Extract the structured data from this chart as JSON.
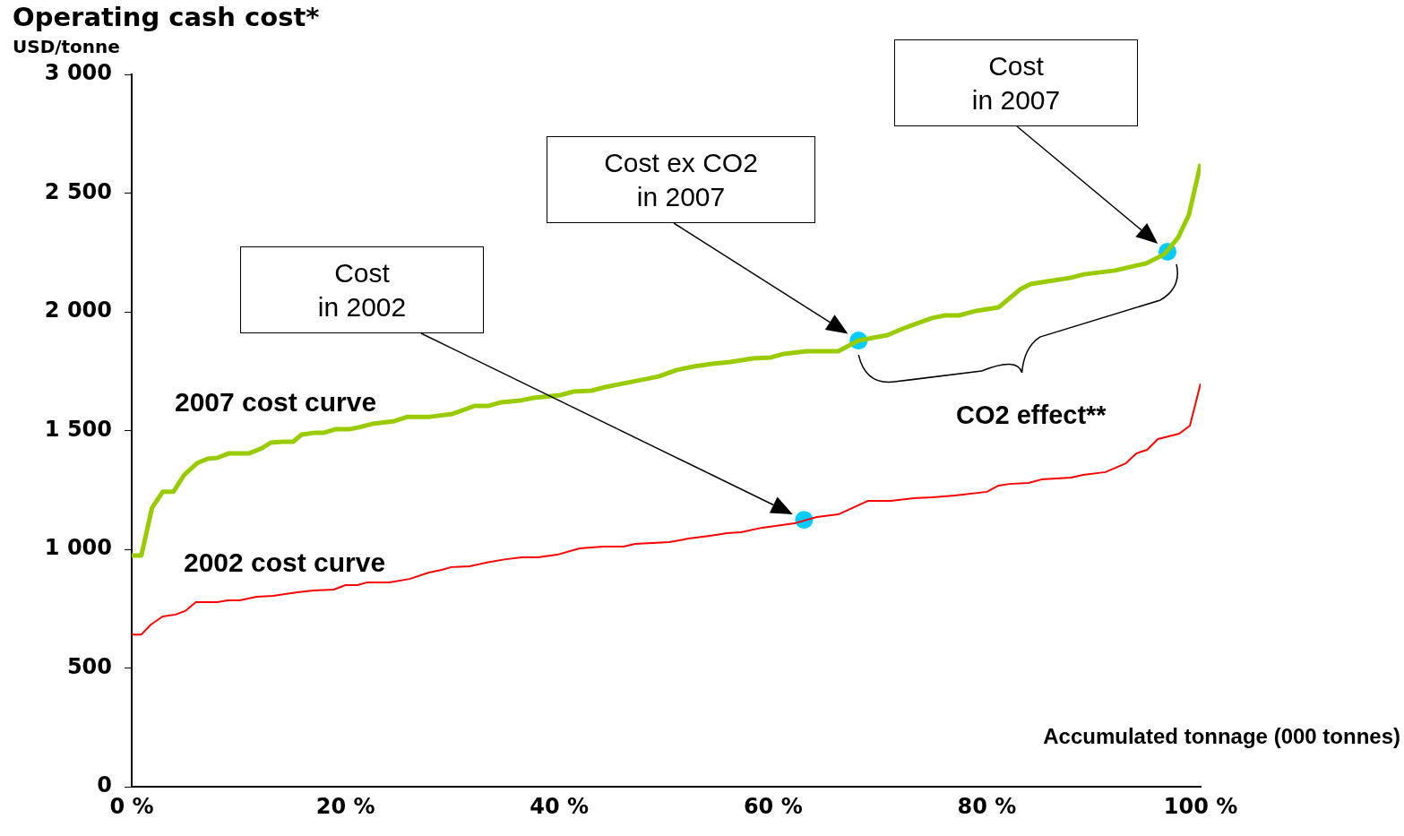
{
  "chart_data": {
    "type": "line",
    "title": "Operating cash cost*",
    "ylabel": "USD/tonne",
    "xlabel": "Accumulated tonnage (000 tonnes)",
    "xlim": [
      0,
      100
    ],
    "xticks": [
      {
        "value": 0,
        "label": "0 %"
      },
      {
        "value": 20,
        "label": "20 %"
      },
      {
        "value": 40,
        "label": "40 %"
      },
      {
        "value": 60,
        "label": "60 %"
      },
      {
        "value": 80,
        "label": "80 %"
      },
      {
        "value": 100,
        "label": "100 %"
      }
    ],
    "ylim": [
      0,
      3000
    ],
    "yticks": [
      0,
      500,
      {
        "value": 1000,
        "label": "1 000"
      },
      {
        "value": 1500,
        "label": "1 500"
      },
      {
        "value": 2000,
        "label": "2 000"
      },
      {
        "value": 2500,
        "label": "2 500"
      },
      {
        "value": 3000,
        "label": "3 000"
      }
    ],
    "grid": false,
    "legend": false,
    "series": [
      {
        "name": "2007 cost curve",
        "color": "#99cc00",
        "x": [
          0,
          0.9,
          1.9,
          2.9,
          3.9,
          4.9,
          6.1,
          7.1,
          8.0,
          9.1,
          11,
          12.2,
          13,
          14.1,
          15.1,
          15.9,
          17.2,
          18,
          19.1,
          20.4,
          21.2,
          22.5,
          24.6,
          25.8,
          27.9,
          30,
          32.1,
          33.4,
          34.6,
          36.3,
          37.6,
          40.1,
          41.3,
          43,
          44.3,
          47.2,
          49.3,
          51,
          52.6,
          54.3,
          56,
          58.1,
          59.8,
          61,
          63.1,
          66.1,
          68,
          70.7,
          72.3,
          74.9,
          76.1,
          77.4,
          79,
          81.1,
          83.1,
          84.1,
          86.2,
          87.8,
          89.1,
          92,
          93.7,
          94.9,
          96.6,
          97.9,
          98.9,
          100
        ],
        "values": [
          974,
          974,
          1174,
          1242,
          1242,
          1313,
          1362,
          1381,
          1385,
          1404,
          1404,
          1426,
          1449,
          1453,
          1453,
          1483,
          1491,
          1491,
          1506,
          1506,
          1513,
          1528,
          1540,
          1558,
          1558,
          1570,
          1604,
          1604,
          1619,
          1626,
          1638,
          1649,
          1664,
          1668,
          1683,
          1709,
          1728,
          1755,
          1770,
          1781,
          1789,
          1804,
          1808,
          1823,
          1834,
          1834,
          1879,
          1902,
          1932,
          1974,
          1985,
          1985,
          2004,
          2019,
          2094,
          2117,
          2132,
          2143,
          2158,
          2174,
          2192,
          2204,
          2242,
          2313,
          2408,
          2623
        ]
      },
      {
        "name": "2002 cost curve",
        "color": "#ff0000",
        "x": [
          0,
          0.9,
          1.8,
          2.9,
          4.1,
          5.0,
          6.0,
          8.0,
          9.0,
          10.1,
          11.7,
          13.2,
          15.5,
          17.0,
          18.9,
          20.0,
          21.1,
          22.0,
          24.1,
          26.0,
          27.8,
          29.0,
          29.9,
          31.6,
          33.1,
          35.0,
          36.5,
          38.0,
          39.8,
          41.9,
          44.1,
          46.0,
          47.1,
          50.3,
          52.1,
          54.1,
          55.7,
          57.0,
          59.0,
          62.0,
          64.1,
          66.1,
          68.9,
          71.0,
          73.1,
          74.9,
          77.0,
          80.0,
          81.1,
          82.1,
          83.9,
          85.1,
          87.9,
          89.0,
          91.1,
          93.0,
          94.0,
          95.0,
          96.0,
          98.0,
          99.0,
          100
        ],
        "values": [
          641,
          641,
          683,
          717,
          725,
          740,
          777,
          777,
          785,
          785,
          800,
          804,
          819,
          826,
          830,
          849,
          849,
          860,
          860,
          875,
          902,
          913,
          925,
          928,
          943,
          958,
          966,
          966,
          977,
          1004,
          1011,
          1011,
          1023,
          1030,
          1045,
          1057,
          1068,
          1072,
          1091,
          1109,
          1136,
          1147,
          1204,
          1204,
          1215,
          1219,
          1226,
          1242,
          1268,
          1275,
          1279,
          1294,
          1302,
          1313,
          1325,
          1362,
          1404,
          1419,
          1464,
          1487,
          1521,
          1698
        ]
      },
      {
        "type": "scatter",
        "color": "#00ccff",
        "marker": "circle",
        "x": [
          62.9,
          68,
          96.9
        ],
        "values": [
          1124,
          1879,
          2253
        ]
      }
    ],
    "annotations": [
      "Cost\nin 2002",
      "Cost ex CO2\nin 2007",
      "Cost\nin 2007",
      "CO2 effect**"
    ]
  }
}
